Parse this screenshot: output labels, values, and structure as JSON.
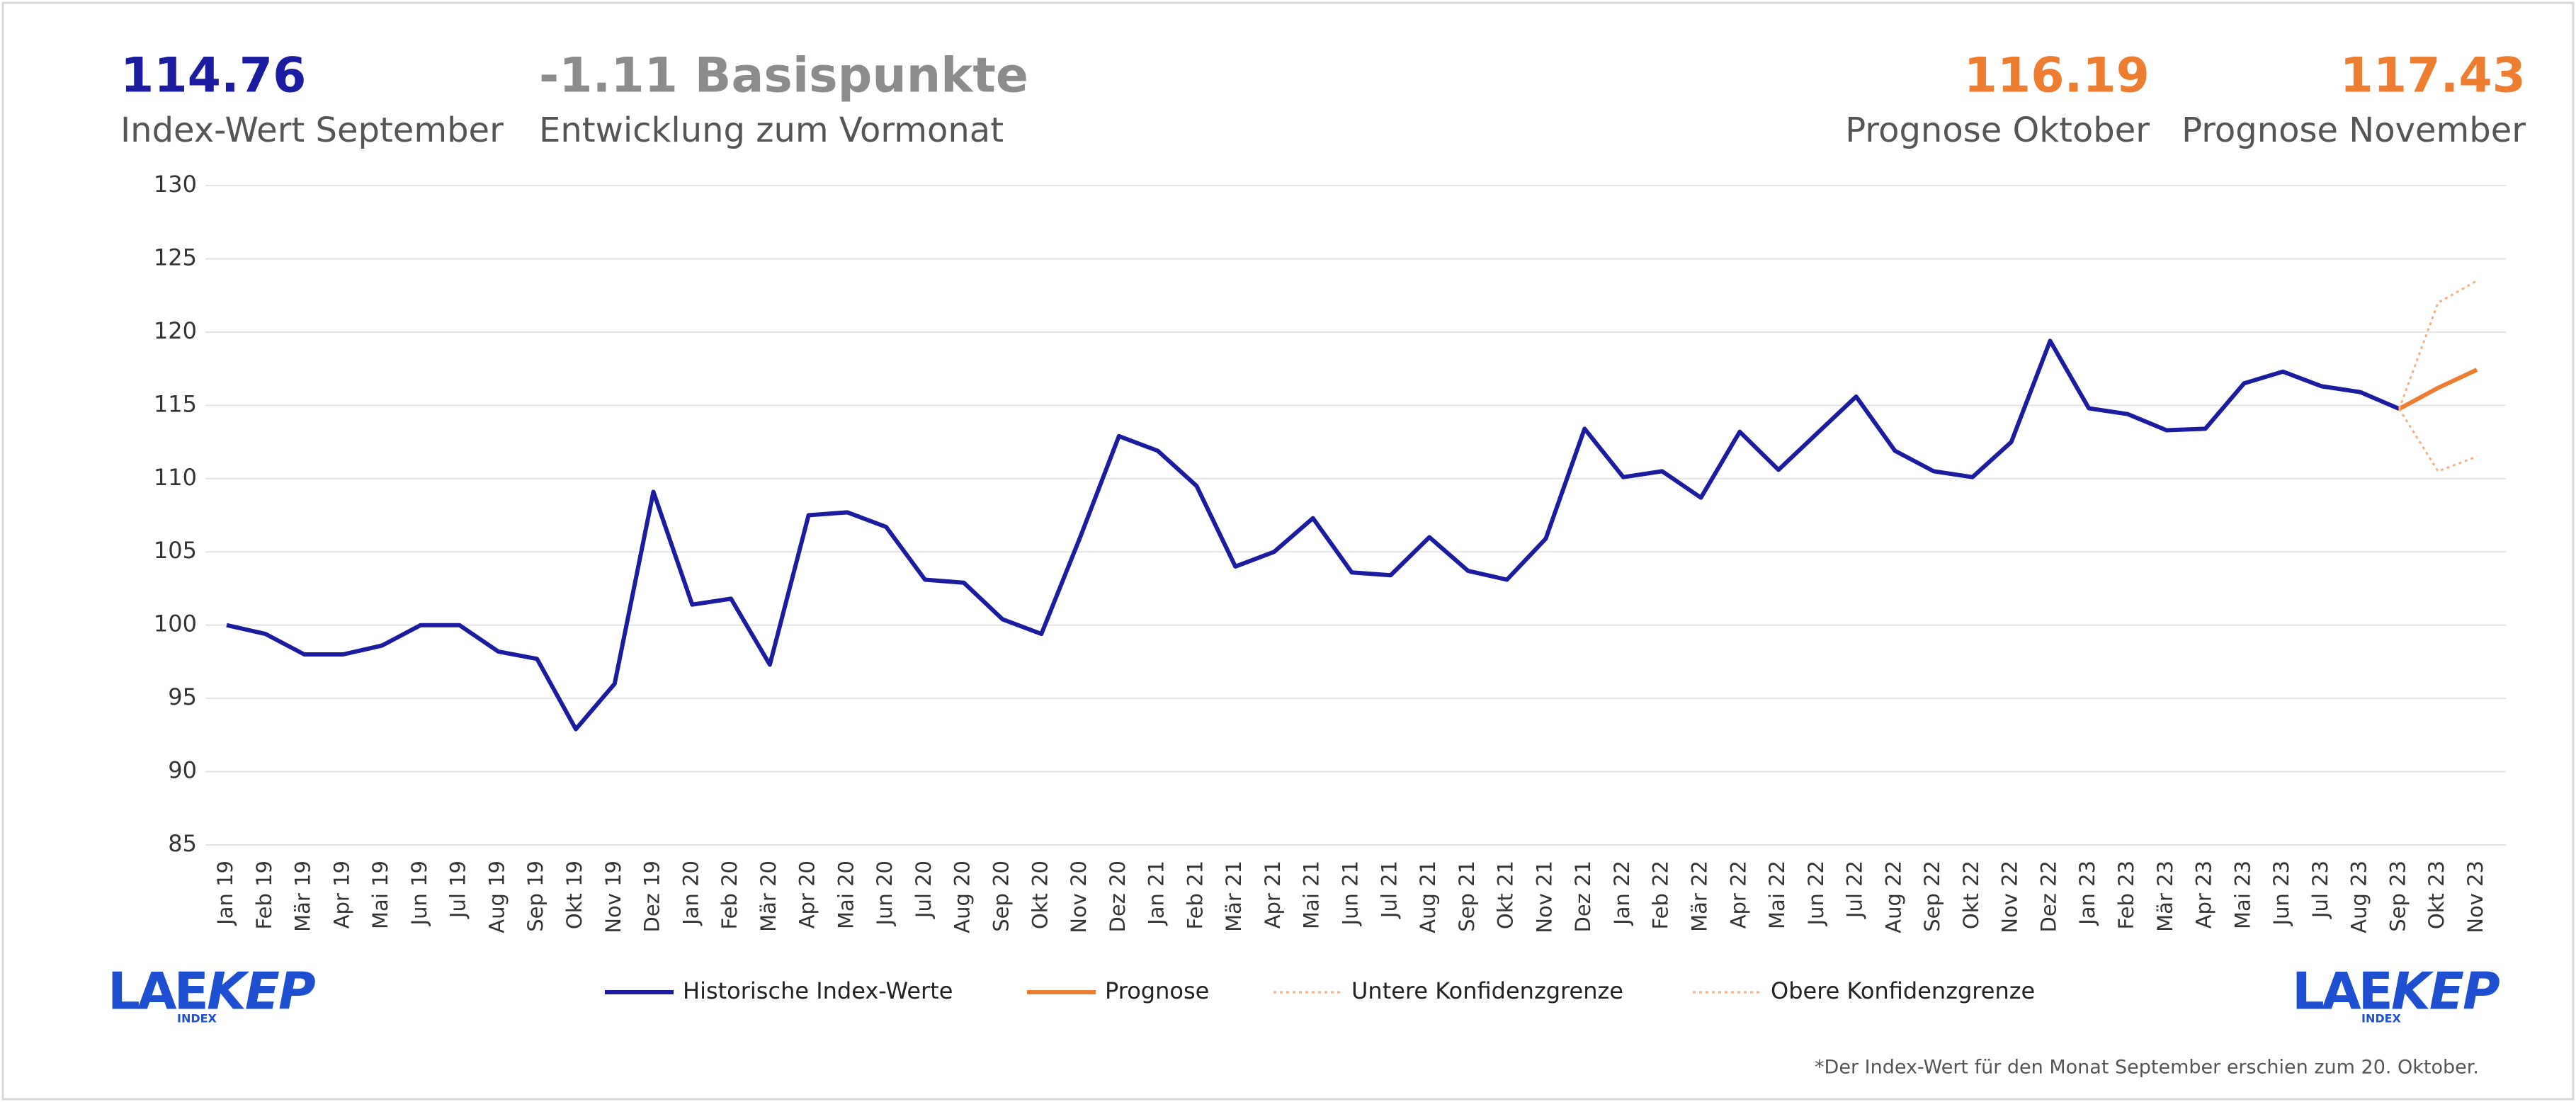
{
  "header": {
    "kpis": [
      {
        "value": "114.76",
        "label": "Index-Wert September",
        "color": "#1c1ca0"
      },
      {
        "value": "-1.11 Basispunkte",
        "label": "Entwicklung zum Vormonat",
        "color": "#8c8c8c"
      },
      {
        "value": "116.19",
        "label": "Prognose Oktober",
        "color": "#ed7d31"
      },
      {
        "value": "117.43",
        "label": "Prognose November",
        "color": "#ed7d31"
      }
    ]
  },
  "logo": {
    "main": "LAE",
    "second": "KEP",
    "sub": "INDEX"
  },
  "footnote": "*Der Index-Wert für den Monat September erschien zum 20. Oktober.",
  "chart_data": {
    "type": "line",
    "categories": [
      "Jan 19",
      "Feb 19",
      "Mär 19",
      "Apr 19",
      "Mai 19",
      "Jun 19",
      "Jul 19",
      "Aug 19",
      "Sep 19",
      "Okt 19",
      "Nov 19",
      "Dez 19",
      "Jan 20",
      "Feb 20",
      "Mär 20",
      "Apr 20",
      "Mai 20",
      "Jun 20",
      "Jul 20",
      "Aug 20",
      "Sep 20",
      "Okt 20",
      "Nov 20",
      "Dez 20",
      "Jan 21",
      "Feb 21",
      "Mär 21",
      "Apr 21",
      "Mai 21",
      "Jun 21",
      "Jul 21",
      "Aug 21",
      "Sep 21",
      "Okt 21",
      "Nov 21",
      "Dez 21",
      "Jan 22",
      "Feb 22",
      "Mär 22",
      "Apr 22",
      "Mai 22",
      "Jun 22",
      "Jul 22",
      "Aug 22",
      "Sep 22",
      "Okt 22",
      "Nov 22",
      "Dez 22",
      "Jan 23",
      "Feb 23",
      "Mär 23",
      "Apr 23",
      "Mai 23",
      "Jun 23",
      "Jul 23",
      "Aug 23",
      "Sep 23",
      "Okt 23",
      "Nov 23"
    ],
    "series": [
      {
        "name": "Historische Index-Werte",
        "color": "#1c1ca0",
        "style": "solid",
        "values": [
          100,
          99.4,
          98,
          98,
          98.6,
          100,
          100,
          98.2,
          97.7,
          92.9,
          96,
          109.1,
          101.4,
          101.8,
          97.3,
          107.5,
          107.7,
          106.7,
          103.1,
          102.9,
          100.4,
          99.4,
          106,
          112.9,
          111.9,
          109.5,
          104,
          105,
          107.3,
          103.6,
          103.4,
          106,
          103.7,
          103.1,
          105.9,
          113.4,
          110.1,
          110.5,
          108.7,
          113.2,
          110.6,
          113.1,
          115.6,
          111.9,
          110.5,
          110.1,
          112.5,
          119.4,
          114.8,
          114.4,
          113.3,
          113.4,
          116.5,
          117.3,
          116.3,
          115.9,
          114.76,
          null,
          null
        ]
      },
      {
        "name": "Prognose",
        "color": "#ed7d31",
        "style": "solid",
        "values": [
          null,
          null,
          null,
          null,
          null,
          null,
          null,
          null,
          null,
          null,
          null,
          null,
          null,
          null,
          null,
          null,
          null,
          null,
          null,
          null,
          null,
          null,
          null,
          null,
          null,
          null,
          null,
          null,
          null,
          null,
          null,
          null,
          null,
          null,
          null,
          null,
          null,
          null,
          null,
          null,
          null,
          null,
          null,
          null,
          null,
          null,
          null,
          null,
          null,
          null,
          null,
          null,
          null,
          null,
          null,
          null,
          114.76,
          116.19,
          117.43
        ]
      },
      {
        "name": "Untere Konfidenzgrenze",
        "color": "#f4b183",
        "style": "dotted",
        "values": [
          null,
          null,
          null,
          null,
          null,
          null,
          null,
          null,
          null,
          null,
          null,
          null,
          null,
          null,
          null,
          null,
          null,
          null,
          null,
          null,
          null,
          null,
          null,
          null,
          null,
          null,
          null,
          null,
          null,
          null,
          null,
          null,
          null,
          null,
          null,
          null,
          null,
          null,
          null,
          null,
          null,
          null,
          null,
          null,
          null,
          null,
          null,
          null,
          null,
          null,
          null,
          null,
          null,
          null,
          null,
          null,
          114.76,
          110.5,
          111.5
        ]
      },
      {
        "name": "Obere Konfidenzgrenze",
        "color": "#f4b183",
        "style": "dotted",
        "values": [
          null,
          null,
          null,
          null,
          null,
          null,
          null,
          null,
          null,
          null,
          null,
          null,
          null,
          null,
          null,
          null,
          null,
          null,
          null,
          null,
          null,
          null,
          null,
          null,
          null,
          null,
          null,
          null,
          null,
          null,
          null,
          null,
          null,
          null,
          null,
          null,
          null,
          null,
          null,
          null,
          null,
          null,
          null,
          null,
          null,
          null,
          null,
          null,
          null,
          null,
          null,
          null,
          null,
          null,
          null,
          null,
          114.76,
          122,
          123.5
        ]
      }
    ],
    "ylim": [
      85,
      130
    ],
    "yticks": [
      85,
      90,
      95,
      100,
      105,
      110,
      115,
      120,
      125,
      130
    ],
    "grid": true,
    "legend": "bottom"
  }
}
